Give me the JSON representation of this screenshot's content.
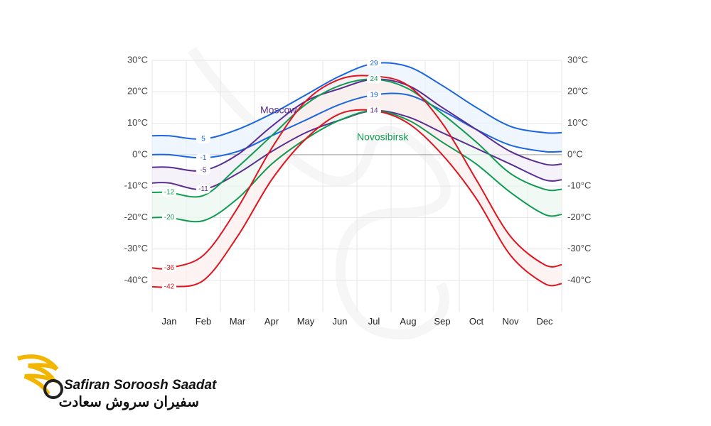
{
  "chart_data": {
    "type": "line",
    "categories": [
      "Jan",
      "Feb",
      "Mar",
      "Apr",
      "May",
      "Jun",
      "Jul",
      "Aug",
      "Sep",
      "Oct",
      "Nov",
      "Dec"
    ],
    "ylim": [
      -50,
      30
    ],
    "yticks": [
      {
        "value": 30,
        "label": "30°C"
      },
      {
        "value": 20,
        "label": "20°C"
      },
      {
        "value": 10,
        "label": "10°C"
      },
      {
        "value": 0,
        "label": "0°C"
      },
      {
        "value": -10,
        "label": "-10°C"
      },
      {
        "value": -20,
        "label": "-20°C"
      },
      {
        "value": -30,
        "label": "-30°C"
      },
      {
        "value": -40,
        "label": "-40°C"
      }
    ],
    "grid": true,
    "cities": [
      {
        "color": "#1a66e0",
        "band": "#eaf2fc",
        "high": [
          6,
          5,
          8,
          13,
          19,
          25,
          29,
          28,
          22,
          15,
          9,
          7
        ],
        "low": [
          0,
          -1,
          1,
          6,
          11,
          16,
          19,
          19,
          14,
          8,
          3,
          1
        ],
        "high_labels_at": [
          1,
          6
        ],
        "low_labels_at": [
          1,
          6
        ]
      },
      {
        "name": "Moscow",
        "color": "#5a2d91",
        "band": "#f1ecf7",
        "high": [
          -4,
          -5,
          0,
          9,
          17,
          21,
          24,
          22,
          15,
          8,
          1,
          -3
        ],
        "low": [
          -9,
          -11,
          -6,
          1,
          7,
          11,
          14,
          12,
          7,
          2,
          -3,
          -8
        ],
        "high_labels_at": [
          1,
          6
        ],
        "low_labels_at": [
          1,
          6
        ]
      },
      {
        "name": "Novosibirsk",
        "color": "#0f9b50",
        "band": "#eaf7f0",
        "high": [
          -12,
          -13,
          -4,
          6,
          16,
          22,
          24,
          21,
          13,
          4,
          -6,
          -11
        ],
        "low": [
          -20,
          -21,
          -14,
          -3,
          5,
          11,
          14,
          11,
          4,
          -3,
          -12,
          -19
        ],
        "high_labels_at": [
          0,
          6
        ],
        "low_labels_at": [
          0
        ]
      },
      {
        "color": "#e0141e",
        "band": "#fdeeee",
        "high": [
          -36,
          -32,
          -17,
          2,
          17,
          24,
          25,
          22,
          10,
          -8,
          -26,
          -35
        ],
        "low": [
          -42,
          -40,
          -26,
          -8,
          5,
          13,
          14,
          10,
          0,
          -14,
          -32,
          -41
        ],
        "high_labels_at": [
          0
        ],
        "low_labels_at": [
          0
        ]
      }
    ]
  },
  "logo": {
    "name": "Safiran Soroosh Saadat",
    "name_fa": "سفیران سروش سعادت"
  }
}
